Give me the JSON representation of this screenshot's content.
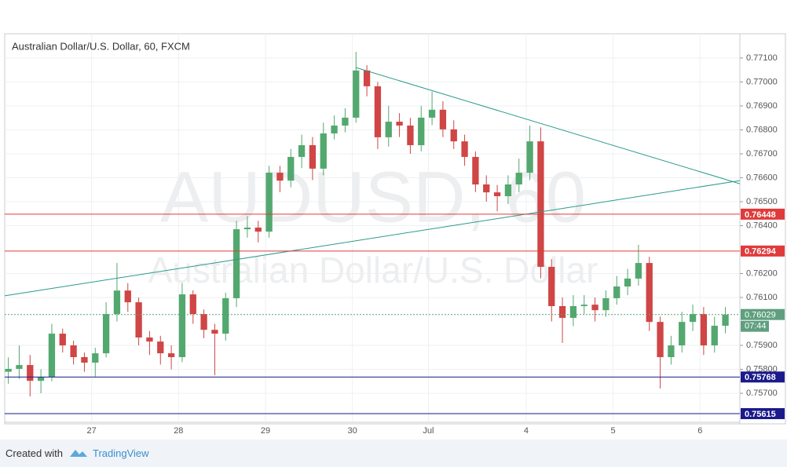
{
  "chart_data": {
    "type": "candlestick",
    "title": "Australian Dollar/U.S. Dollar, 60, FXCM",
    "watermark": "AUDUSD, 60",
    "watermark_subtitle": "Australian Dollar/U.S. Dollar",
    "x": [
      0,
      3,
      6,
      9,
      12,
      15,
      18,
      21,
      24,
      27,
      30,
      33,
      36,
      39,
      42,
      45,
      48,
      51,
      54,
      57,
      60,
      63,
      66,
      69,
      72,
      75,
      78,
      81,
      84,
      87,
      90,
      93,
      96,
      99,
      102,
      105,
      108,
      111,
      114,
      117,
      120,
      123,
      126,
      129,
      132,
      135,
      138,
      141,
      144,
      147,
      150,
      153,
      156,
      159,
      162,
      165,
      168,
      171,
      174,
      177,
      180,
      183,
      186,
      189,
      192,
      195,
      198
    ],
    "open": [
      0.7579,
      0.75802,
      0.75818,
      0.75752,
      0.75769,
      0.75949,
      0.759,
      0.75851,
      0.75828,
      0.75867,
      0.76031,
      0.76129,
      0.7608,
      0.75933,
      0.75916,
      0.75867,
      0.75851,
      0.76113,
      0.76031,
      0.75965,
      0.75949,
      0.76097,
      0.76385,
      0.76392,
      0.76375,
      0.76621,
      0.76588,
      0.76687,
      0.76736,
      0.76638,
      0.76785,
      0.76818,
      0.76851,
      0.77048,
      0.76982,
      0.76769,
      0.76834,
      0.76818,
      0.76736,
      0.76851,
      0.76884,
      0.76802,
      0.76752,
      0.76687,
      0.76572,
      0.76539,
      0.76523,
      0.76572,
      0.76621,
      0.76752,
      0.76228,
      0.76064,
      0.76015,
      0.76064,
      0.7607,
      0.76047,
      0.76097,
      0.76146,
      0.76179,
      0.76244,
      0.75998,
      0.75851,
      0.759,
      0.75998,
      0.76031,
      0.759,
      0.75982
    ],
    "high": [
      0.7585,
      0.759,
      0.7586,
      0.758,
      0.7599,
      0.7597,
      0.7592,
      0.7587,
      0.7589,
      0.7608,
      0.76244,
      0.7616,
      0.761,
      0.7596,
      0.7594,
      0.759,
      0.7616,
      0.7613,
      0.7605,
      0.7599,
      0.7612,
      0.7642,
      0.7644,
      0.7642,
      0.7665,
      0.7665,
      0.7672,
      0.7678,
      0.7677,
      0.7683,
      0.7686,
      0.7689,
      0.77126,
      0.7707,
      0.77,
      0.769,
      0.7687,
      0.7685,
      0.769,
      0.7696,
      0.7692,
      0.7684,
      0.7678,
      0.7671,
      0.7661,
      0.7657,
      0.7661,
      0.7668,
      0.76818,
      0.7681,
      0.7626,
      0.761,
      0.7611,
      0.7611,
      0.761,
      0.7613,
      0.7619,
      0.7622,
      0.7632,
      0.7627,
      0.7602,
      0.7594,
      0.7604,
      0.7607,
      0.7606,
      0.7602,
      0.7606
    ],
    "low": [
      0.7574,
      0.7576,
      0.75687,
      0.757,
      0.7575,
      0.7587,
      0.7582,
      0.7579,
      0.7577,
      0.7585,
      0.76,
      0.7604,
      0.759,
      0.7586,
      0.7582,
      0.758,
      0.7583,
      0.7599,
      0.7593,
      0.75775,
      0.7592,
      0.7606,
      0.7635,
      0.7633,
      0.7635,
      0.7654,
      0.7656,
      0.7664,
      0.7659,
      0.7661,
      0.7676,
      0.7679,
      0.7683,
      0.7694,
      0.7672,
      0.7673,
      0.7677,
      0.767,
      0.7671,
      0.7682,
      0.7677,
      0.7672,
      0.7665,
      0.7654,
      0.765,
      0.7646,
      0.7649,
      0.7654,
      0.7659,
      0.7618,
      0.76,
      0.7591,
      0.7598,
      0.7603,
      0.76,
      0.7602,
      0.7607,
      0.7611,
      0.7615,
      0.7596,
      0.7572,
      0.7582,
      0.7587,
      0.7596,
      0.7586,
      0.7587,
      0.7595
    ],
    "close": [
      0.75802,
      0.75818,
      0.75752,
      0.75769,
      0.75949,
      0.759,
      0.75851,
      0.75828,
      0.75867,
      0.76031,
      0.76129,
      0.7608,
      0.75933,
      0.75916,
      0.75867,
      0.75851,
      0.76113,
      0.76031,
      0.75965,
      0.75949,
      0.76097,
      0.76385,
      0.76392,
      0.76375,
      0.76621,
      0.76588,
      0.76687,
      0.76736,
      0.76638,
      0.76785,
      0.76818,
      0.76851,
      0.77048,
      0.76982,
      0.76769,
      0.76834,
      0.76818,
      0.76736,
      0.76851,
      0.76884,
      0.76802,
      0.76752,
      0.76687,
      0.76572,
      0.76539,
      0.76523,
      0.76572,
      0.76621,
      0.76752,
      0.76228,
      0.76064,
      0.76015,
      0.76064,
      0.7607,
      0.76047,
      0.76097,
      0.76146,
      0.76179,
      0.76244,
      0.75998,
      0.75851,
      0.759,
      0.75998,
      0.76031,
      0.759,
      0.75982,
      0.76029
    ],
    "up_color": "#53a86f",
    "down_color": "#d04545",
    "xlim": [
      -1,
      202
    ],
    "ylim": [
      0.75579,
      0.77198
    ],
    "xticks": [
      {
        "value": 23,
        "label": "27"
      },
      {
        "value": 47,
        "label": "28"
      },
      {
        "value": 71,
        "label": "29"
      },
      {
        "value": 95,
        "label": "30"
      },
      {
        "value": 116,
        "label": "Jul"
      },
      {
        "value": 143,
        "label": "4"
      },
      {
        "value": 167,
        "label": "5"
      },
      {
        "value": 191,
        "label": "6"
      }
    ],
    "yticks": [
      {
        "value": 0.771,
        "label": "0.77100"
      },
      {
        "value": 0.77,
        "label": "0.77000"
      },
      {
        "value": 0.769,
        "label": "0.76900"
      },
      {
        "value": 0.768,
        "label": "0.76800"
      },
      {
        "value": 0.767,
        "label": "0.76700"
      },
      {
        "value": 0.766,
        "label": "0.76600"
      },
      {
        "value": 0.765,
        "label": "0.76500"
      },
      {
        "value": 0.764,
        "label": "0.76400"
      },
      {
        "value": 0.762,
        "label": "0.76200"
      },
      {
        "value": 0.761,
        "label": "0.76100"
      },
      {
        "value": 0.759,
        "label": "0.75900"
      },
      {
        "value": 0.758,
        "label": "0.75800"
      },
      {
        "value": 0.757,
        "label": "0.75700"
      }
    ],
    "grid": true,
    "levels": [
      {
        "value": 0.76448,
        "color": "#e03a3a"
      },
      {
        "value": 0.76294,
        "color": "#e03a3a"
      },
      {
        "value": 0.75768,
        "color": "#1a1a8c"
      },
      {
        "value": 0.75615,
        "color": "#1a1a8c"
      }
    ],
    "current_price": {
      "value": 0.76029,
      "countdown": "07:44",
      "color": "#5f9f7f"
    },
    "trendlines": [
      {
        "x": [
          96,
          202
        ],
        "y": [
          0.7706,
          0.76575
        ],
        "color": "#2a9a8a"
      },
      {
        "x": [
          -1,
          202
        ],
        "y": [
          0.76107,
          0.76588
        ],
        "color": "#2a9a8a"
      }
    ]
  },
  "footer": {
    "created_with": "Created with",
    "brand": "TradingView"
  }
}
